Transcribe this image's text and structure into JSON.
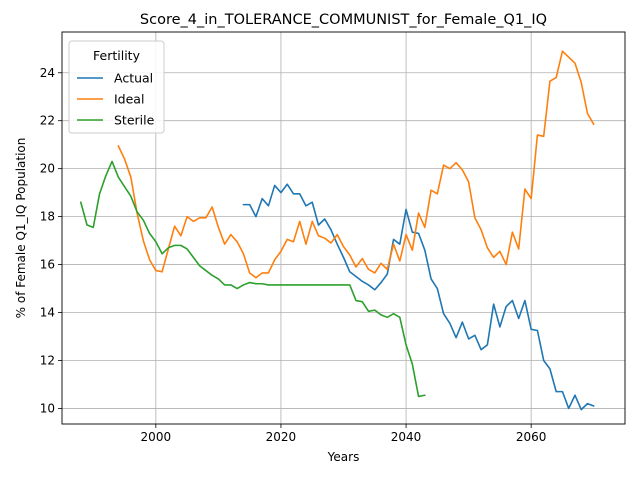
{
  "chart_data": {
    "type": "line",
    "title": "Score_4_in_TOLERANCE_COMMUNIST_for_Female_Q1_IQ",
    "xlabel": "Years",
    "ylabel": "% of Female Q1_IQ Population",
    "xlim": [
      1985,
      2075
    ],
    "ylim": [
      9.35,
      25.7
    ],
    "xticks": [
      2000,
      2020,
      2040,
      2060
    ],
    "yticks": [
      10,
      12,
      14,
      16,
      18,
      20,
      22,
      24
    ],
    "grid": true,
    "legend": {
      "title": "Fertility",
      "placement": "top-left"
    },
    "series": [
      {
        "name": "Actual",
        "color": "#1f77b4",
        "x": [
          2014,
          2015,
          2016,
          2017,
          2018,
          2019,
          2020,
          2021,
          2022,
          2023,
          2024,
          2025,
          2026,
          2027,
          2028,
          2029,
          2030,
          2031,
          2032,
          2033,
          2034,
          2035,
          2036,
          2037,
          2038,
          2039,
          2040,
          2041,
          2042,
          2043,
          2044,
          2045,
          2046,
          2047,
          2048,
          2049,
          2050,
          2051,
          2052,
          2053,
          2054,
          2055,
          2056,
          2057,
          2058,
          2059,
          2060,
          2061,
          2062,
          2063,
          2064,
          2065,
          2066,
          2067,
          2068,
          2069,
          2070
        ],
        "y": [
          18.5,
          18.5,
          18.0,
          18.75,
          18.45,
          19.3,
          19.0,
          19.35,
          18.95,
          18.95,
          18.45,
          18.6,
          17.65,
          17.9,
          17.45,
          16.85,
          16.3,
          15.7,
          15.5,
          15.3,
          15.15,
          14.95,
          15.25,
          15.6,
          17.05,
          16.85,
          18.3,
          17.35,
          17.3,
          16.6,
          15.4,
          15.0,
          13.95,
          13.55,
          12.95,
          13.6,
          12.9,
          13.05,
          12.45,
          12.65,
          14.35,
          13.4,
          14.25,
          14.5,
          13.75,
          14.5,
          13.3,
          13.25,
          12.0,
          11.65,
          10.7,
          10.7,
          10.0,
          10.55,
          9.95,
          10.2,
          10.1
        ]
      },
      {
        "name": "Ideal",
        "color": "#ff7f0e",
        "x": [
          1994,
          1995,
          1996,
          1997,
          1998,
          1999,
          2000,
          2001,
          2002,
          2003,
          2004,
          2005,
          2006,
          2007,
          2008,
          2009,
          2010,
          2011,
          2012,
          2013,
          2014,
          2015,
          2016,
          2017,
          2018,
          2019,
          2020,
          2021,
          2022,
          2023,
          2024,
          2025,
          2026,
          2027,
          2028,
          2029,
          2030,
          2031,
          2032,
          2033,
          2034,
          2035,
          2036,
          2037,
          2038,
          2039,
          2040,
          2041,
          2042,
          2043,
          2044,
          2045,
          2046,
          2047,
          2048,
          2049,
          2050,
          2051,
          2052,
          2053,
          2054,
          2055,
          2056,
          2057,
          2058,
          2059,
          2060,
          2061,
          2062,
          2063,
          2064,
          2065,
          2066,
          2067,
          2068,
          2069,
          2070
        ],
        "y": [
          20.95,
          20.4,
          19.65,
          18.15,
          17.0,
          16.2,
          15.75,
          15.7,
          16.65,
          17.6,
          17.2,
          18.0,
          17.8,
          17.95,
          17.95,
          18.4,
          17.55,
          16.85,
          17.25,
          16.95,
          16.45,
          15.65,
          15.45,
          15.65,
          15.65,
          16.2,
          16.55,
          17.05,
          16.95,
          17.8,
          16.85,
          17.8,
          17.2,
          17.1,
          16.9,
          17.25,
          16.75,
          16.4,
          15.9,
          16.25,
          15.8,
          15.65,
          16.05,
          15.8,
          16.85,
          16.15,
          17.25,
          16.6,
          18.15,
          17.55,
          19.1,
          18.95,
          20.15,
          20.0,
          20.25,
          19.95,
          19.45,
          17.95,
          17.45,
          16.7,
          16.3,
          16.55,
          16.0,
          17.35,
          16.65,
          19.15,
          18.75,
          21.4,
          21.35,
          23.65,
          23.8,
          24.9,
          24.65,
          24.4,
          23.6,
          22.3,
          21.85
        ]
      },
      {
        "name": "Sterile",
        "color": "#2ca02c",
        "x": [
          1988,
          1989,
          1990,
          1991,
          1992,
          1993,
          1994,
          1995,
          1996,
          1997,
          1998,
          1999,
          2000,
          2001,
          2002,
          2003,
          2004,
          2005,
          2006,
          2007,
          2008,
          2009,
          2010,
          2011,
          2012,
          2013,
          2014,
          2015,
          2016,
          2017,
          2018,
          2019,
          2020,
          2021,
          2022,
          2023,
          2024,
          2025,
          2026,
          2027,
          2028,
          2029,
          2030,
          2031,
          2032,
          2033,
          2034,
          2035,
          2036,
          2037,
          2038,
          2039,
          2040,
          2041,
          2042,
          2043
        ],
        "y": [
          18.6,
          17.65,
          17.55,
          18.95,
          19.7,
          20.3,
          19.65,
          19.25,
          18.85,
          18.2,
          17.85,
          17.3,
          16.95,
          16.45,
          16.7,
          16.8,
          16.8,
          16.65,
          16.3,
          15.95,
          15.75,
          15.55,
          15.4,
          15.15,
          15.15,
          15.0,
          15.15,
          15.25,
          15.2,
          15.2,
          15.15,
          15.15,
          15.15,
          15.15,
          15.15,
          15.15,
          15.15,
          15.15,
          15.15,
          15.15,
          15.15,
          15.15,
          15.15,
          15.15,
          14.5,
          14.45,
          14.05,
          14.1,
          13.9,
          13.8,
          13.95,
          13.8,
          12.65,
          11.85,
          10.5,
          10.55
        ]
      }
    ]
  }
}
